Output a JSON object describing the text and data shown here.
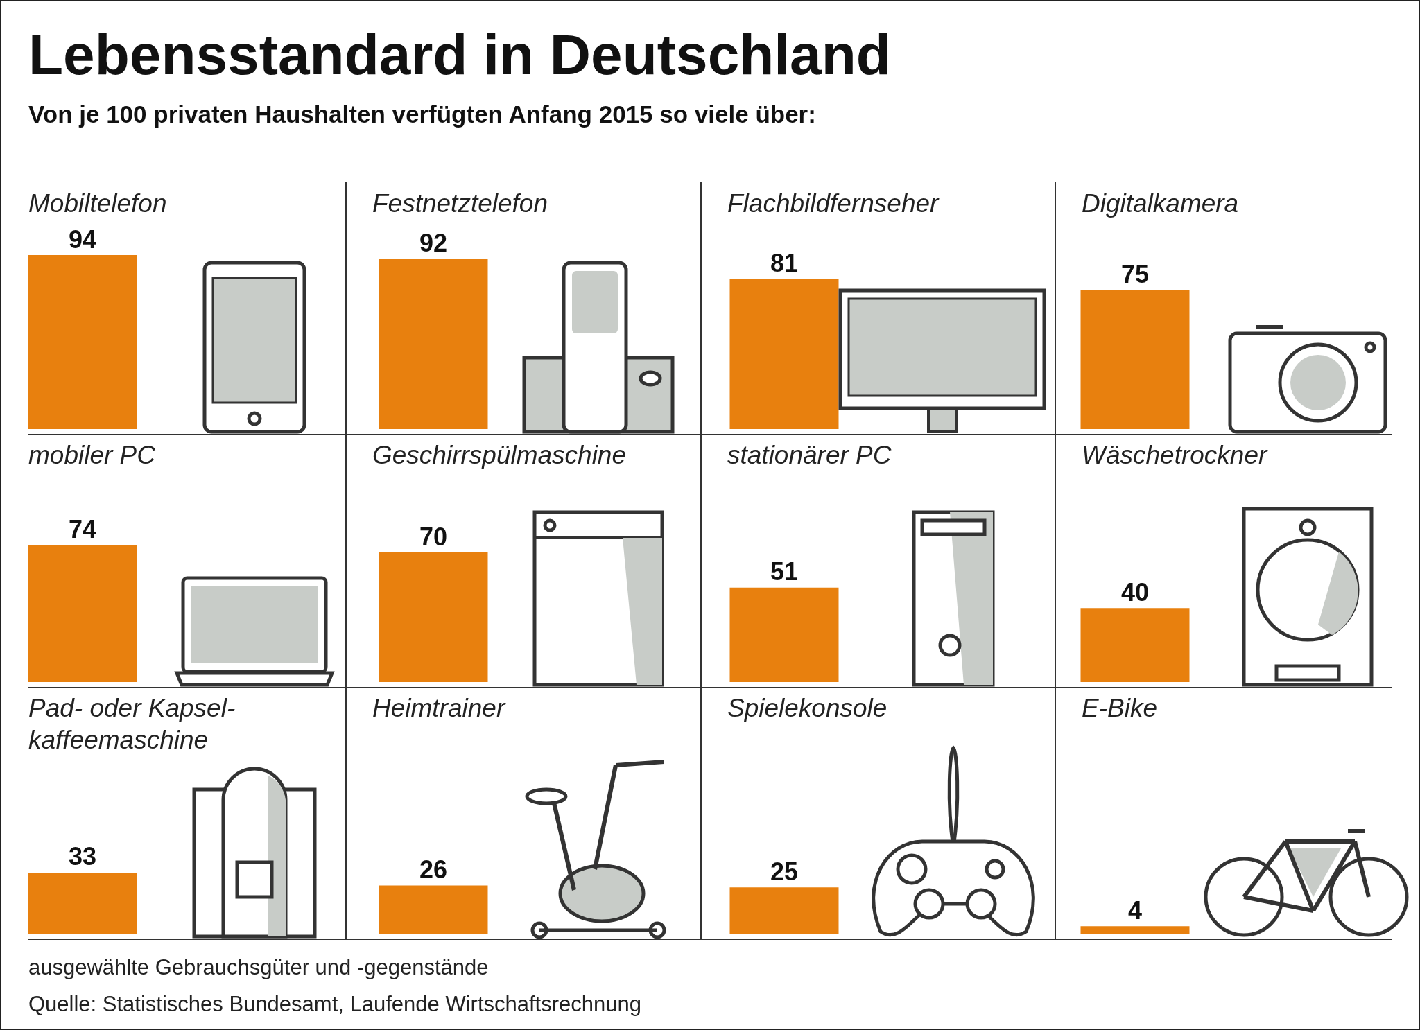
{
  "chart_data": [
    {
      "type": "bar",
      "title": "Lebensstandard in Deutschland",
      "subtitle": "Von je 100 privaten Haushalten verfügten Anfang 2015 so viele über:",
      "categories": [
        null,
        null,
        null,
        null
      ],
      "values": [
        94,
        92,
        81,
        75
      ],
      "color": "#e8800e",
      "data_labels": true,
      "annotations": [
        "Mobiltelefon",
        "Festnetztelefon",
        "Flachbildfernseher",
        "Digitalkamera"
      ]
    },
    {
      "type": "bar",
      "categories": [
        null,
        null,
        null,
        null
      ],
      "values": [
        74,
        70,
        51,
        40
      ],
      "color": "#e8800e",
      "data_labels": true,
      "annotations": [
        "mobiler PC",
        "Geschirrspülmaschine",
        "stationärer PC",
        "Wäschetrockner"
      ]
    },
    {
      "type": "bar",
      "categories": [
        null,
        null,
        null,
        null
      ],
      "values": [
        33,
        26,
        25,
        4
      ],
      "color": "#e8800e",
      "data_labels": true,
      "annotations": [
        "Pad- oder Kapsel-kaffeemaschine",
        "Heimtrainer",
        "Spielekonsole",
        "E-Bike",
        "ausgewählte Gebrauchsgüter und -gegenstände",
        "Quelle: Statistisches Bundesamt, Laufende Wirtschaftsrechnung"
      ]
    }
  ]
}
